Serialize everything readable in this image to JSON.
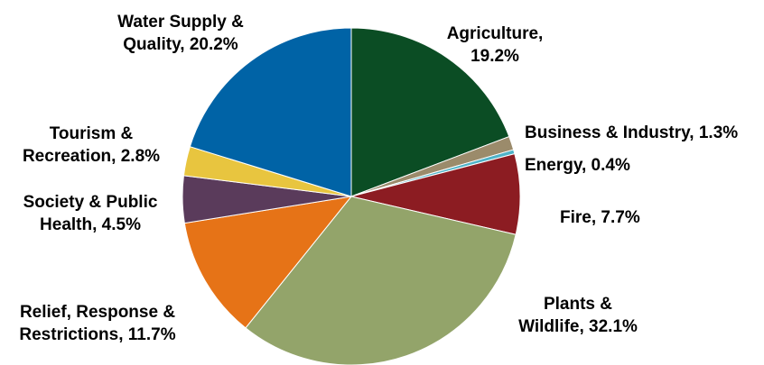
{
  "chart_data": {
    "type": "pie",
    "title": "",
    "start_angle_deg": 0,
    "direction": "clockwise",
    "slices": [
      {
        "name": "Agriculture",
        "value": 19.2,
        "color": "#0b4d24",
        "label_lines": [
          "Agriculture,",
          "19.2%"
        ]
      },
      {
        "name": "Business & Industry",
        "value": 1.3,
        "color": "#9b8b6b",
        "label_lines": [
          "Business & Industry, 1.3%"
        ]
      },
      {
        "name": "Energy",
        "value": 0.4,
        "color": "#4fb3c8",
        "label_lines": [
          "Energy, 0.4%"
        ]
      },
      {
        "name": "Fire",
        "value": 7.7,
        "color": "#8c1c22",
        "label_lines": [
          "Fire, 7.7%"
        ]
      },
      {
        "name": "Plants & Wildlife",
        "value": 32.1,
        "color": "#93a46a",
        "label_lines": [
          "Plants &",
          "Wildlife, 32.1%"
        ]
      },
      {
        "name": "Relief, Response & Restrictions",
        "value": 11.7,
        "color": "#e67317",
        "label_lines": [
          "Relief, Response &",
          "Restrictions, 11.7%"
        ]
      },
      {
        "name": "Society & Public Health",
        "value": 4.5,
        "color": "#5a3b5b",
        "label_lines": [
          "Society & Public",
          "Health, 4.5%"
        ]
      },
      {
        "name": "Tourism & Recreation",
        "value": 2.8,
        "color": "#e8c53f",
        "label_lines": [
          "Tourism &",
          "Recreation, 2.8%"
        ]
      },
      {
        "name": "Water Supply & Quality",
        "value": 20.2,
        "color": "#0063a6",
        "label_lines": [
          "Water Supply &",
          "Quality, 20.2%"
        ]
      }
    ]
  }
}
